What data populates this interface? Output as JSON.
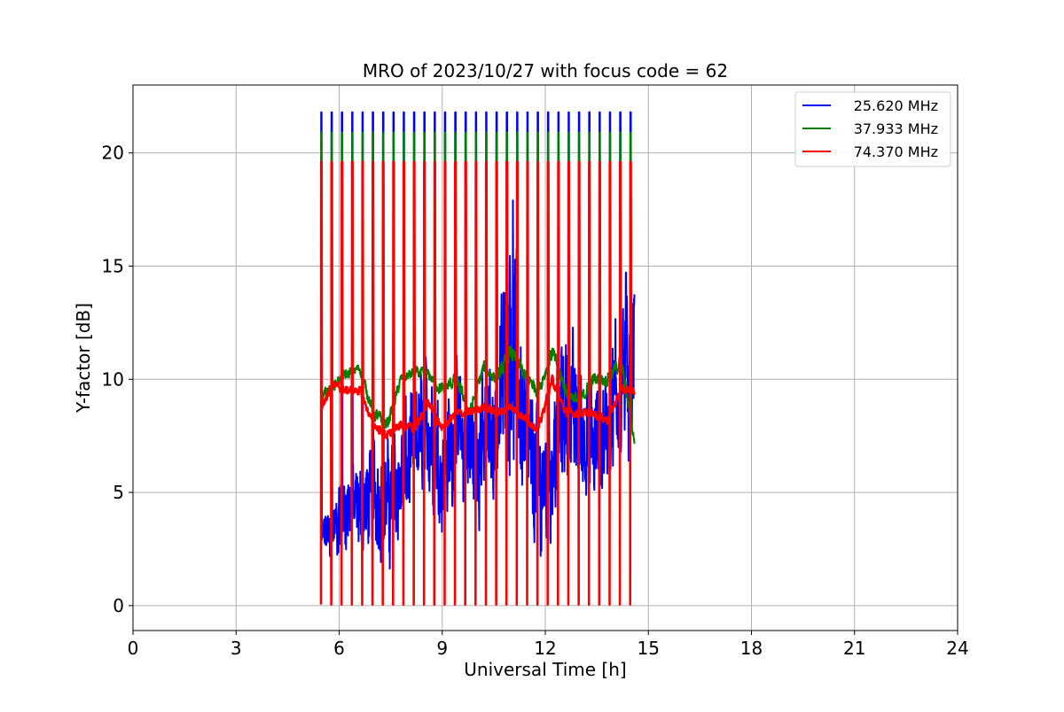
{
  "chart_data": {
    "type": "line",
    "title": "MRO of 2023/10/27 with focus code = 62",
    "xlabel": "Universal Time [h]",
    "ylabel": "Y-factor [dB]",
    "xlim": [
      0,
      24
    ],
    "ylim": [
      -1.1,
      23.0
    ],
    "xticks": [
      0,
      3,
      6,
      9,
      12,
      15,
      18,
      21,
      24
    ],
    "yticks": [
      0,
      5,
      10,
      15,
      20
    ],
    "grid": true,
    "legend_position": "top-right",
    "cycle": {
      "start": 5.47,
      "end": 14.6,
      "period": 0.3,
      "pulse_width": 0.02
    },
    "series": [
      {
        "name": "25.620 MHz",
        "color": "#0000ff",
        "peak_value": 21.8,
        "trough_value": 0.15,
        "baseline_x": [
          5.5,
          5.8,
          6.2,
          6.6,
          7.0,
          7.4,
          7.8,
          8.2,
          8.6,
          9.0,
          9.4,
          9.8,
          10.2,
          10.6,
          11.0,
          11.4,
          11.8,
          12.2,
          12.6,
          13.0,
          13.4,
          13.8,
          14.2,
          14.6
        ],
        "baseline_y": [
          3.0,
          3.2,
          4.5,
          4.2,
          5.0,
          4.5,
          5.5,
          7.0,
          8.0,
          6.0,
          7.5,
          7.0,
          7.0,
          8.0,
          13.0,
          7.5,
          5.0,
          6.5,
          9.0,
          8.0,
          7.0,
          8.0,
          10.0,
          11.0
        ],
        "spread": [
          1.0,
          1.5,
          2.0,
          2.0,
          2.5,
          2.5,
          3.0,
          3.0,
          3.0,
          3.0,
          3.0,
          3.0,
          3.0,
          3.0,
          6.0,
          3.5,
          3.5,
          3.5,
          3.5,
          3.0,
          3.0,
          3.0,
          4.0,
          4.5
        ]
      },
      {
        "name": "37.933 MHz",
        "color": "#008000",
        "peak_value": 20.9,
        "trough_value": 0.15,
        "baseline_x": [
          5.5,
          5.8,
          6.2,
          6.6,
          7.0,
          7.4,
          7.8,
          8.2,
          8.6,
          9.0,
          9.4,
          9.8,
          10.2,
          10.6,
          11.0,
          11.4,
          11.8,
          12.2,
          12.6,
          13.0,
          13.4,
          13.8,
          14.2,
          14.6
        ],
        "baseline_y": [
          9.2,
          9.7,
          10.2,
          10.5,
          8.5,
          8.0,
          10.0,
          10.3,
          10.2,
          9.5,
          10.0,
          8.5,
          10.5,
          10.0,
          11.2,
          10.2,
          9.5,
          11.2,
          9.5,
          9.0,
          10.0,
          10.0,
          10.8,
          7.2
        ],
        "spread": [
          0.4,
          0.4,
          0.4,
          0.4,
          0.5,
          0.5,
          0.4,
          0.4,
          0.4,
          0.5,
          0.5,
          0.5,
          0.5,
          0.5,
          0.6,
          0.5,
          0.5,
          0.6,
          0.5,
          0.5,
          0.5,
          0.5,
          0.6,
          0.4
        ]
      },
      {
        "name": "74.370 MHz",
        "color": "#ff0000",
        "peak_value": 19.6,
        "trough_value": 0.05,
        "baseline_x": [
          5.5,
          5.8,
          6.2,
          6.6,
          7.0,
          7.4,
          7.8,
          8.2,
          8.6,
          9.0,
          9.4,
          9.8,
          10.2,
          10.6,
          11.0,
          11.4,
          11.8,
          12.2,
          12.6,
          13.0,
          13.4,
          13.8,
          14.2,
          14.6
        ],
        "baseline_y": [
          8.8,
          9.8,
          9.5,
          9.5,
          8.0,
          7.5,
          8.0,
          7.8,
          9.0,
          7.8,
          8.5,
          8.5,
          8.8,
          8.5,
          8.8,
          8.3,
          7.8,
          10.0,
          8.5,
          8.5,
          8.5,
          8.2,
          9.5,
          9.5
        ],
        "spread": [
          0.3,
          0.3,
          0.3,
          0.3,
          0.3,
          0.3,
          0.3,
          0.3,
          0.3,
          0.3,
          0.3,
          0.3,
          0.3,
          0.3,
          0.3,
          0.3,
          0.3,
          0.3,
          0.3,
          0.3,
          0.3,
          0.3,
          0.3,
          0.3
        ]
      }
    ]
  }
}
